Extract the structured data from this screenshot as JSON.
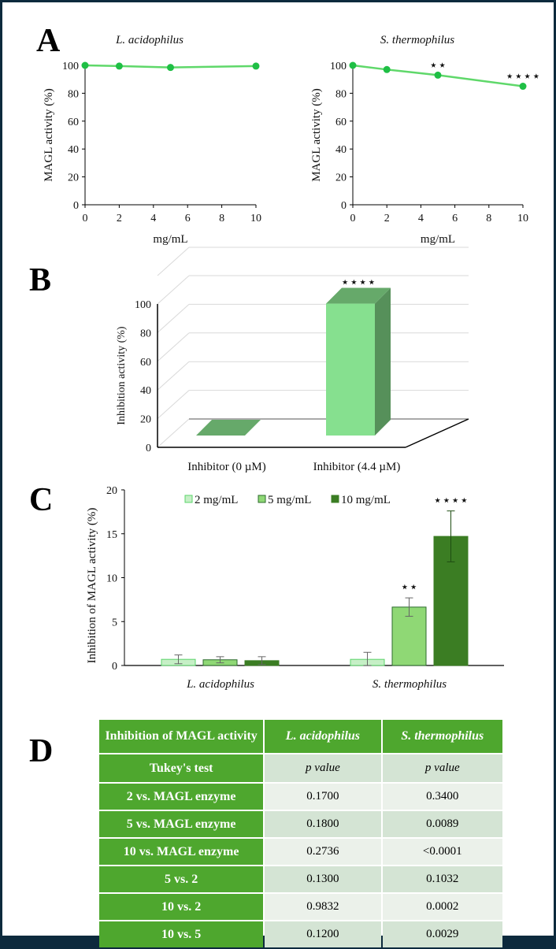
{
  "panels": {
    "A": "A",
    "B": "B",
    "C": "C",
    "D": "D"
  },
  "chart_data": [
    {
      "id": "A-left",
      "type": "line",
      "title": "L. acidophilus",
      "xlabel": "mg/mL",
      "ylabel": "MAGL activity (%)",
      "x": [
        0,
        2,
        5,
        10
      ],
      "values": [
        100,
        99.5,
        98.5,
        99.5
      ],
      "xlim": [
        0,
        10
      ],
      "ylim": [
        0,
        100
      ],
      "xticks": [
        "0",
        "2",
        "4",
        "6",
        "8",
        "10"
      ],
      "yticks": [
        "0",
        "20",
        "40",
        "60",
        "80",
        "100"
      ],
      "annotations": [],
      "color": "#3ccc55",
      "grid": false
    },
    {
      "id": "A-right",
      "type": "line",
      "title": "S. thermophilus",
      "xlabel": "mg/mL",
      "ylabel": "MAGL activity (%)",
      "x": [
        0,
        2,
        5,
        10
      ],
      "values": [
        100,
        97,
        93,
        85
      ],
      "xlim": [
        0,
        10
      ],
      "ylim": [
        0,
        100
      ],
      "xticks": [
        "0",
        "2",
        "4",
        "6",
        "8",
        "10"
      ],
      "yticks": [
        "0",
        "20",
        "40",
        "60",
        "80",
        "100"
      ],
      "annotations": [
        {
          "x": 5,
          "text": "**"
        },
        {
          "x": 10,
          "text": "****"
        }
      ],
      "color": "#3ccc55",
      "grid": false
    },
    {
      "id": "B",
      "type": "bar",
      "style": "3d",
      "title": "",
      "xlabel": "",
      "ylabel": "Inhibition activity (%)",
      "categories": [
        "Inhibitor (0 µM)",
        "Inhibitor (4.4 µM)"
      ],
      "values": [
        0,
        92
      ],
      "ylim": [
        0,
        100
      ],
      "yticks": [
        "0",
        "20",
        "40",
        "60",
        "80",
        "100"
      ],
      "annotations": [
        {
          "category": 1,
          "text": "****"
        }
      ],
      "grid": true
    },
    {
      "id": "C",
      "type": "bar",
      "title": "",
      "xlabel": "",
      "ylabel": "Inhibition of MAGL activity (%)",
      "categories": [
        "L. acidophilus",
        "S. thermophilus"
      ],
      "series": [
        {
          "name": "2 mg/mL",
          "values": [
            0.7,
            0.7
          ],
          "err_low": [
            0.2,
            0.0
          ],
          "err_high": [
            1.2,
            1.5
          ],
          "fill": "#c6efc6",
          "stroke": "#5bd46b"
        },
        {
          "name": "5 mg/mL",
          "values": [
            0.65,
            6.65
          ],
          "err_low": [
            0.3,
            5.6
          ],
          "err_high": [
            1.0,
            7.7
          ],
          "fill": "#8fd875",
          "stroke": "#2e6b2e"
        },
        {
          "name": "10 mg/mL",
          "values": [
            0.55,
            14.7
          ],
          "err_low": [
            0.1,
            11.8
          ],
          "err_high": [
            1.0,
            17.6
          ],
          "fill": "#3b7d23",
          "stroke": "#3b7d23"
        }
      ],
      "ylim": [
        0,
        20
      ],
      "yticks": [
        "0",
        "5",
        "10",
        "15",
        "20"
      ],
      "annotations": [
        {
          "category": 1,
          "series": 1,
          "text": "**"
        },
        {
          "category": 1,
          "series": 2,
          "text": "****"
        }
      ],
      "legend": "top",
      "grid": false
    }
  ],
  "table": {
    "headers": [
      "Inhibition of MAGL activity",
      "L. acidophilus",
      "S. thermophilus"
    ],
    "subheader": [
      "Tukey's test",
      "p value",
      "p value"
    ],
    "rows": [
      [
        "2 vs. MAGL enzyme",
        "0.1700",
        "0.3400"
      ],
      [
        "5 vs. MAGL enzyme",
        "0.1800",
        "0.0089"
      ],
      [
        "10 vs. MAGL enzyme",
        "0.2736",
        "<0.0001"
      ],
      [
        "5 vs. 2",
        "0.1300",
        "0.1032"
      ],
      [
        "10 vs. 2",
        "0.9832",
        "0.0002"
      ],
      [
        "10 vs. 5",
        "0.1200",
        "0.0029"
      ]
    ]
  }
}
